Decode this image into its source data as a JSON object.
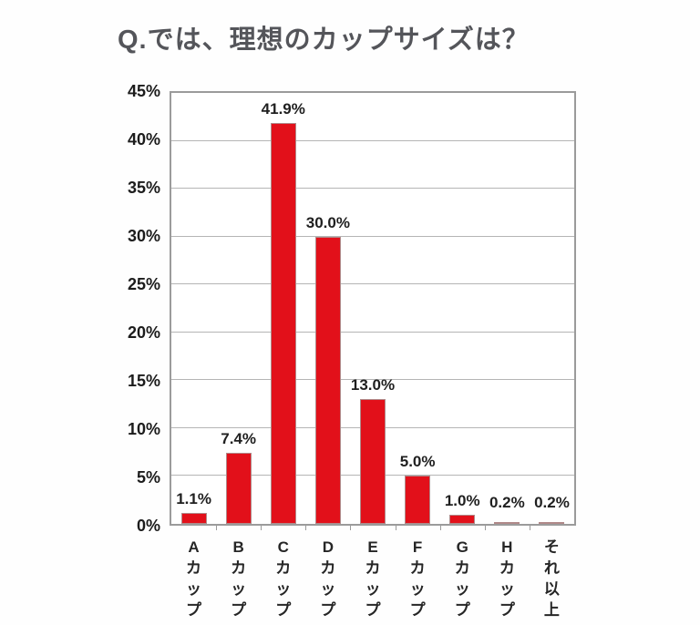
{
  "title": {
    "text": "Q.では、理想のカップサイズは？"
  },
  "chart_data": {
    "type": "bar",
    "title": "Q.では、理想のカップサイズは？",
    "categories": [
      "Aカップ",
      "Bカップ",
      "Cカップ",
      "Dカップ",
      "Eカップ",
      "Fカップ",
      "Gカップ",
      "Hカップ",
      "それ以上"
    ],
    "values": [
      1.1,
      7.4,
      41.9,
      30.0,
      13.0,
      5.0,
      1.0,
      0.2,
      0.2
    ],
    "value_labels": [
      "1.1%",
      "7.4%",
      "41.9%",
      "30.0%",
      "13.0%",
      "5.0%",
      "1.0%",
      "0.2%",
      "0.2%"
    ],
    "xlabel": "",
    "ylabel": "",
    "ylim": [
      0,
      45
    ],
    "ytick_step": 5,
    "ytick_labels": [
      "0%",
      "5%",
      "10%",
      "15%",
      "20%",
      "25%",
      "30%",
      "35%",
      "40%",
      "45%"
    ],
    "grid": true,
    "legend": "none",
    "colors": {
      "bar_fill": "#e2101a",
      "bar_border": "#b08a8a",
      "axis": "#9b9b9b",
      "gridline": "#b5b5b5",
      "value_label": "#1f1f1f",
      "tick_label": "#1c1c1c",
      "title": "#54555a"
    }
  }
}
